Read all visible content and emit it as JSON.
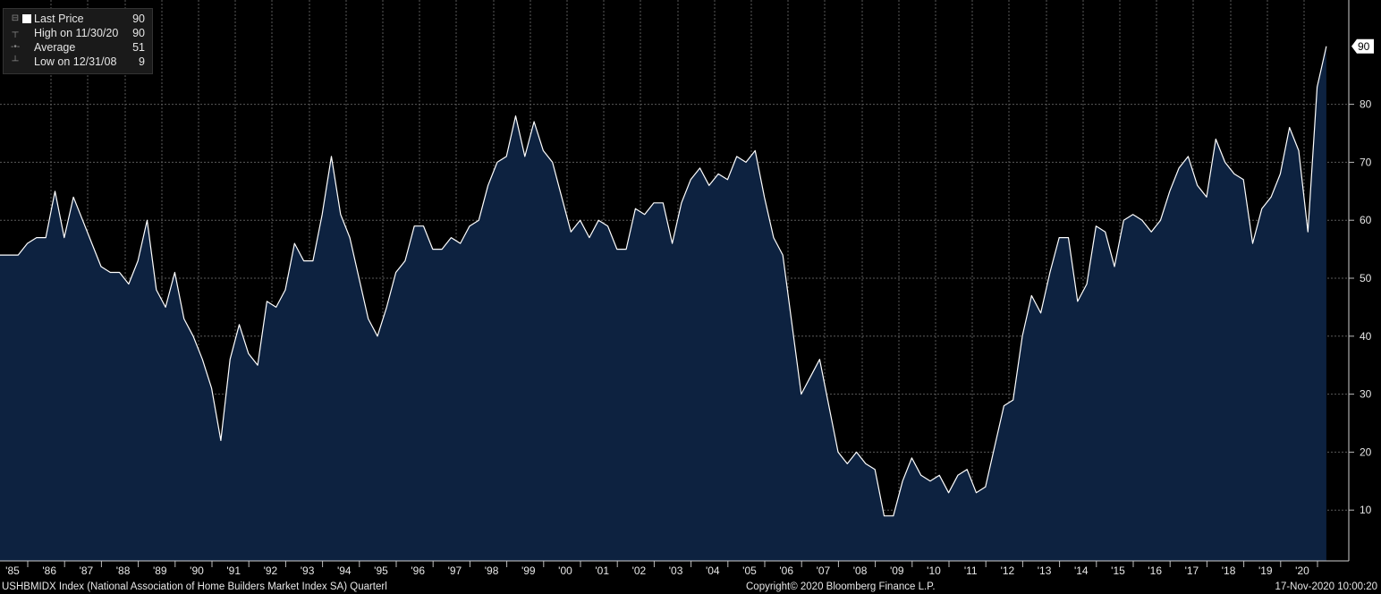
{
  "legend": {
    "last_price_label": "Last Price",
    "last_price_value": "90",
    "high_label": "High on 11/30/20",
    "high_value": "90",
    "average_label": "Average",
    "average_value": "51",
    "low_label": "Low on 12/31/08",
    "low_value": "9"
  },
  "footer": {
    "left": "USHBMIDX Index (National Association of Home Builders Market Index SA)  Quarterl",
    "center": "Copyright© 2020 Bloomberg Finance L.P.",
    "right": "17-Nov-2020 10:00:20"
  },
  "colors": {
    "background": "#000000",
    "fill": "#0d2240",
    "line": "#ffffff",
    "grid": "#5a5a5a"
  },
  "chart_data": {
    "type": "area",
    "title": "",
    "last_value_label": "90",
    "x_start": "1985 Q1",
    "frequency": "quarterly",
    "x_tick_labels": [
      "'85",
      "'86",
      "'87",
      "'88",
      "'89",
      "'90",
      "'91",
      "'92",
      "'93",
      "'94",
      "'95",
      "'96",
      "'97",
      "'98",
      "'99",
      "'00",
      "'01",
      "'02",
      "'03",
      "'04",
      "'05",
      "'06",
      "'07",
      "'08",
      "'09",
      "'10",
      "'11",
      "'12",
      "'13",
      "'14",
      "'15",
      "'16",
      "'17",
      "'18",
      "'19",
      "'20"
    ],
    "y_tick_labels": [
      "10",
      "20",
      "30",
      "40",
      "50",
      "60",
      "70",
      "80"
    ],
    "ylim": [
      0,
      96
    ],
    "grid": true,
    "values": [
      54,
      54,
      56,
      57,
      57,
      65,
      57,
      64,
      60,
      56,
      52,
      51,
      51,
      49,
      53,
      60,
      48,
      45,
      51,
      43,
      40,
      36,
      31,
      22,
      36,
      42,
      37,
      35,
      46,
      45,
      48,
      56,
      53,
      53,
      61,
      71,
      61,
      57,
      50,
      43,
      40,
      45,
      51,
      53,
      59,
      59,
      55,
      55,
      57,
      56,
      59,
      60,
      66,
      70,
      71,
      78,
      71,
      77,
      72,
      70,
      64,
      58,
      60,
      57,
      60,
      59,
      55,
      55,
      62,
      61,
      63,
      63,
      56,
      63,
      67,
      69,
      66,
      68,
      67,
      71,
      70,
      72,
      64,
      57,
      54,
      42,
      30,
      33,
      36,
      28,
      20,
      18,
      20,
      18,
      17,
      9,
      9,
      15,
      19,
      16,
      15,
      16,
      13,
      16,
      17,
      13,
      14,
      21,
      28,
      29,
      40,
      47,
      44,
      51,
      57,
      57,
      46,
      49,
      59,
      58,
      52,
      60,
      61,
      60,
      58,
      60,
      65,
      69,
      71,
      66,
      64,
      74,
      70,
      68,
      67,
      56,
      62,
      64,
      68,
      76,
      72,
      58,
      83,
      90
    ]
  }
}
